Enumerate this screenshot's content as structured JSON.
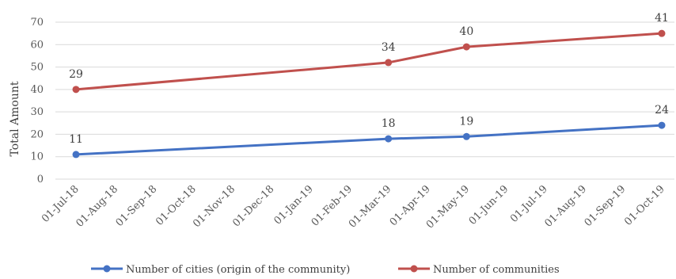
{
  "chart_data": {
    "type": "line",
    "ylabel": "Total Amount",
    "ylim": [
      0,
      70
    ],
    "yticks": [
      0,
      10,
      20,
      30,
      40,
      50,
      60,
      70
    ],
    "x_tick_labels": [
      "01-Jul-18",
      "01-Aug-18",
      "01-Sep-18",
      "01-Oct-18",
      "01-Nov-18",
      "01-Dec-18",
      "01-Jan-19",
      "01-Feb-19",
      "01-Mar-19",
      "01-Apr-19",
      "01-May-19",
      "01-Jun-19",
      "01-Jul-19",
      "01-Aug-19",
      "01-Sep-19",
      "01-Oct-19"
    ],
    "grid": true,
    "legend_position": "bottom",
    "series": [
      {
        "name": "Number of cities (origin of the community)",
        "color": "#4472C4",
        "points": [
          {
            "x": "01-Jul-18",
            "y": 11,
            "label": "11"
          },
          {
            "x": "01-Mar-19",
            "y": 18,
            "label": "18"
          },
          {
            "x": "01-May-19",
            "y": 19,
            "label": "19"
          },
          {
            "x": "01-Oct-19",
            "y": 24,
            "label": "24"
          }
        ]
      },
      {
        "name": "Number of communities",
        "color": "#C0504D",
        "points": [
          {
            "x": "01-Jul-18",
            "y": 40,
            "label": "29"
          },
          {
            "x": "01-Mar-19",
            "y": 52,
            "label": "34"
          },
          {
            "x": "01-May-19",
            "y": 59,
            "label": "40"
          },
          {
            "x": "01-Oct-19",
            "y": 65,
            "label": "41"
          }
        ]
      }
    ]
  }
}
